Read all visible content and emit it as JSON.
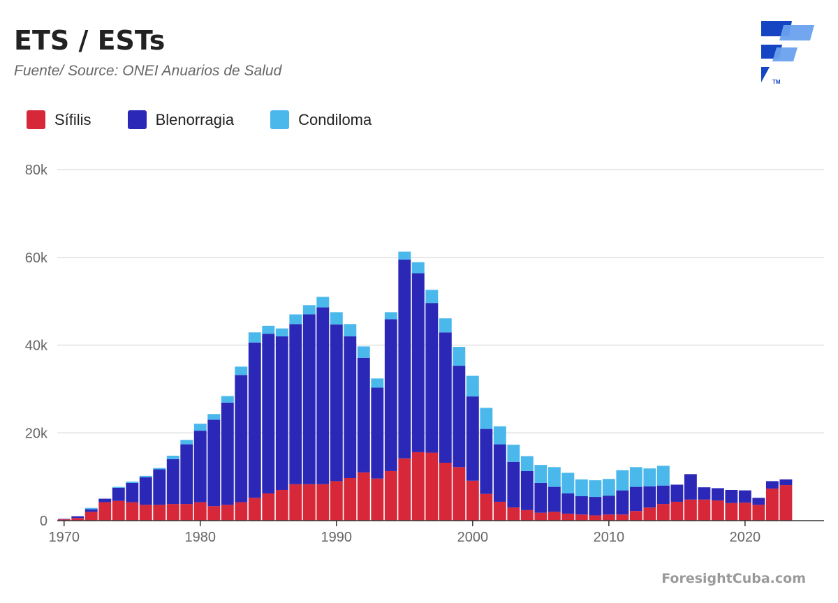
{
  "header": {
    "title": "ETS / ESTs",
    "subtitle": "Fuente/ Source: ONEI Anuarios de Salud"
  },
  "footer": {
    "watermark": "ForesightCuba.com"
  },
  "logo": {
    "icon": "foresight-logo-icon",
    "tm": "TM"
  },
  "colors": {
    "sifilis": "#d62839",
    "blenorragia": "#2b28b7",
    "condiloma": "#4bb8ec",
    "logo_dark": "#1545c2",
    "logo_light": "#6aa1ee"
  },
  "chart_data": {
    "type": "bar",
    "stacked": true,
    "grid": true,
    "legend_placement": "top-left",
    "ylim": [
      0,
      80000
    ],
    "xlim": [
      1969.5,
      2025.8
    ],
    "y_ticks": [
      0,
      20000,
      40000,
      60000,
      80000
    ],
    "y_tick_labels": [
      "0",
      "20k",
      "40k",
      "60k",
      "80k"
    ],
    "x_ticks": [
      1970,
      1980,
      1990,
      2000,
      2010,
      2020
    ],
    "x_tick_labels": [
      "1970",
      "1980",
      "1990",
      "2000",
      "2010",
      "2020"
    ],
    "x": [
      1970,
      1971,
      1972,
      1973,
      1974,
      1975,
      1976,
      1977,
      1978,
      1979,
      1980,
      1981,
      1982,
      1983,
      1984,
      1985,
      1986,
      1987,
      1988,
      1989,
      1990,
      1991,
      1992,
      1993,
      1994,
      1995,
      1996,
      1997,
      1998,
      1999,
      2000,
      2001,
      2002,
      2003,
      2004,
      2005,
      2006,
      2007,
      2008,
      2009,
      2010,
      2011,
      2012,
      2013,
      2014,
      2015,
      2016,
      2017,
      2018,
      2019,
      2020,
      2021,
      2022,
      2023
    ],
    "series": [
      {
        "name": "Sífilis",
        "color": "#d62839",
        "values": [
          300,
          600,
          2000,
          4200,
          4500,
          4200,
          3600,
          3600,
          3800,
          3800,
          4200,
          3300,
          3600,
          4200,
          5200,
          6200,
          7000,
          8300,
          8300,
          8300,
          9000,
          9700,
          11000,
          9600,
          11300,
          14200,
          15600,
          15500,
          13200,
          12200,
          9100,
          6100,
          4300,
          3000,
          2400,
          1800,
          2000,
          1600,
          1400,
          1200,
          1400,
          1400,
          2200,
          3000,
          3800,
          4300,
          4800,
          4800,
          4600,
          4000,
          4100,
          3600,
          7300,
          8100
        ]
      },
      {
        "name": "Blenorragia",
        "color": "#2b28b7",
        "values": [
          100,
          400,
          600,
          800,
          3000,
          4400,
          6300,
          8100,
          10200,
          13600,
          16300,
          19700,
          23300,
          29000,
          35400,
          36400,
          35000,
          36500,
          38700,
          40300,
          35700,
          32300,
          26100,
          20700,
          34600,
          45300,
          40800,
          34100,
          29700,
          23100,
          19200,
          14800,
          13100,
          10400,
          8900,
          6800,
          5700,
          4600,
          4200,
          4200,
          4300,
          5500,
          5500,
          4800,
          4200,
          3900,
          5800,
          2800,
          2800,
          3000,
          2800,
          1600,
          1700,
          1300
        ]
      },
      {
        "name": "Condiloma",
        "color": "#4bb8ec",
        "values": [
          0,
          0,
          300,
          0,
          200,
          300,
          300,
          300,
          800,
          1000,
          1600,
          1300,
          1500,
          1900,
          2300,
          1800,
          1800,
          2200,
          2100,
          2400,
          2800,
          2800,
          2600,
          2100,
          1600,
          1800,
          2500,
          3000,
          3200,
          4300,
          4700,
          4800,
          4100,
          3900,
          3400,
          4100,
          4500,
          4700,
          3800,
          3800,
          3800,
          4600,
          4500,
          4100,
          4500,
          0,
          0,
          0,
          0,
          0,
          0,
          0,
          0,
          0
        ]
      }
    ]
  }
}
